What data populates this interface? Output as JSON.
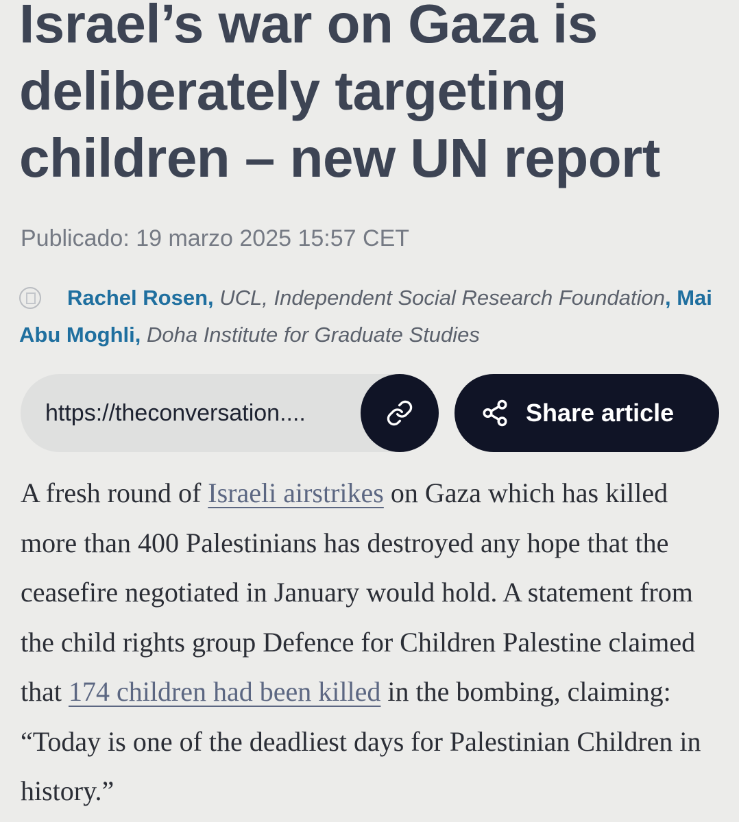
{
  "article": {
    "headline": "Israel’s war on Gaza is deliberately targeting children – new UN report",
    "published": "Publicado: 19 marzo 2025 15:57 CET",
    "authors": [
      {
        "name": "Rachel Rosen,",
        "affiliation": "UCL, Independent Social Research Foundation"
      },
      {
        "name": "Mai Abu Moghli,",
        "affiliation": "Doha Institute for Graduate Studies"
      }
    ],
    "author_separator": ",",
    "avatar_icon": "avatar-placeholder-icon"
  },
  "share": {
    "url": "https://theconversation....",
    "copy_icon": "link-icon",
    "share_icon": "share-icon",
    "share_label": "Share article",
    "button_color": "#101426",
    "url_bg_color": "#dfe0df"
  },
  "body": {
    "p1_start": "A fresh round of ",
    "link1": "Israeli airstrikes",
    "p1_mid": " on Gaza which has killed more than 400 Palestinians has destroyed any hope that the ceasefire negotiated in January would hold. A statement from the child rights group Defence for Children Palestine claimed that ",
    "link2": "174 children had been killed",
    "p1_end": " in the bombing, claiming: “Today is one of the deadliest days for Palestinian Children in history.”"
  },
  "colors": {
    "background": "#ececea",
    "author_link": "#1f6f9f",
    "headline": "#3d4454"
  }
}
